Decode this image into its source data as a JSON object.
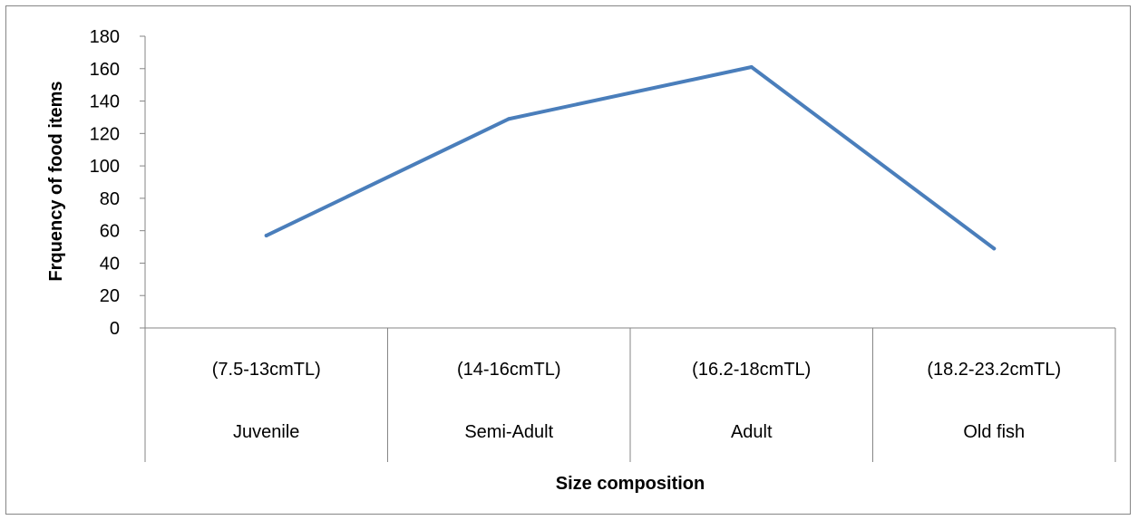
{
  "chart_data": {
    "type": "line",
    "title": "",
    "xlabel": "Size composition",
    "ylabel": "Frquency of food items",
    "ylim": [
      0,
      180
    ],
    "y_ticks": [
      0,
      20,
      40,
      60,
      80,
      100,
      120,
      140,
      160,
      180
    ],
    "grid": false,
    "legend": "none",
    "categories": [
      {
        "range": "(7.5-13cmTL)",
        "group": "Juvenile"
      },
      {
        "range": "(14-16cmTL)",
        "group": "Semi-Adult"
      },
      {
        "range": "(16.2-18cmTL)",
        "group": "Adult"
      },
      {
        "range": "(18.2-23.2cmTL)",
        "group": "Old fish"
      }
    ],
    "series": [
      {
        "values": [
          57,
          129,
          161,
          49
        ],
        "color": "#4a7ebb"
      }
    ]
  }
}
